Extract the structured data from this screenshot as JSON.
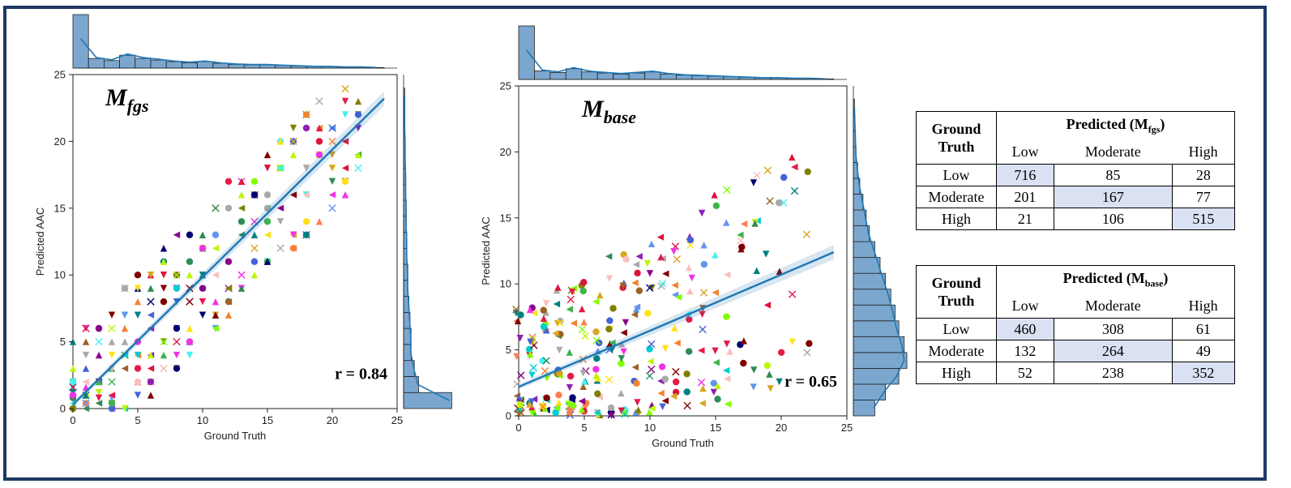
{
  "colors": {
    "frame": "#1f3864",
    "fit_line": "#1f77b4",
    "hist_fill": "#7ba7cf",
    "diag_cell": "#d9e1f2"
  },
  "chart_data": [
    {
      "type": "scatter",
      "title": "M_fgs",
      "title_main": "M",
      "title_sub": "fgs",
      "xlabel": "Ground Truth",
      "ylabel": "Predicted AAC",
      "xlim": [
        0,
        25
      ],
      "ylim": [
        0,
        25
      ],
      "xticks": [
        0,
        5,
        10,
        15,
        20,
        25
      ],
      "yticks": [
        0,
        5,
        10,
        15,
        20,
        25
      ],
      "annotation": "r = 0.84",
      "fit_line": {
        "x": [
          0,
          24
        ],
        "y": [
          0.3,
          23.2
        ]
      },
      "points_range_y_over_x": {
        "slope": 0.95,
        "spread": 3.5
      },
      "marginal_x": [
        1.0,
        0.18,
        0.14,
        0.24,
        0.18,
        0.15,
        0.12,
        0.1,
        0.12,
        0.09,
        0.07,
        0.06,
        0.06,
        0.05,
        0.04,
        0.03,
        0.03,
        0.02,
        0.02,
        0.01
      ],
      "marginal_y": [
        0.9,
        0.28,
        0.2,
        0.14,
        0.14,
        0.12,
        0.1,
        0.08,
        0.08,
        0.06,
        0.06,
        0.05,
        0.05,
        0.04,
        0.04,
        0.03,
        0.03,
        0.02,
        0.02,
        0.02
      ]
    },
    {
      "type": "scatter",
      "title": "M_base",
      "title_main": "M",
      "title_sub": "base",
      "xlabel": "Ground Truth",
      "ylabel": "Predicted AAC",
      "xlim": [
        0,
        25
      ],
      "ylim": [
        0,
        25
      ],
      "xticks": [
        0,
        5,
        10,
        15,
        20,
        25
      ],
      "yticks": [
        0,
        5,
        10,
        15,
        20,
        25
      ],
      "annotation": "r = 0.65",
      "fit_line": {
        "x": [
          0,
          24
        ],
        "y": [
          2.2,
          12.4
        ]
      },
      "marginal_x": [
        1.0,
        0.16,
        0.13,
        0.2,
        0.14,
        0.12,
        0.1,
        0.12,
        0.14,
        0.1,
        0.08,
        0.07,
        0.06,
        0.05,
        0.04,
        0.03,
        0.03,
        0.02,
        0.02,
        0.01
      ],
      "marginal_y": [
        0.4,
        0.6,
        0.85,
        1.0,
        0.95,
        0.85,
        0.78,
        0.7,
        0.6,
        0.5,
        0.4,
        0.3,
        0.24,
        0.18,
        0.12,
        0.08,
        0.05,
        0.04,
        0.03,
        0.02
      ]
    }
  ],
  "tables": [
    {
      "row_header": "Ground Truth",
      "col_header_main": "Predicted (M",
      "col_header_sub": "fgs",
      "col_header_end": ")",
      "columns": [
        "Low",
        "Moderate",
        "High"
      ],
      "rows": [
        {
          "label": "Low",
          "values": [
            "716",
            "85",
            "28"
          ]
        },
        {
          "label": "Moderate",
          "values": [
            "201",
            "167",
            "77"
          ]
        },
        {
          "label": "High",
          "values": [
            "21",
            "106",
            "515"
          ]
        }
      ]
    },
    {
      "row_header": "Ground Truth",
      "col_header_main": "Predicted (M",
      "col_header_sub": "base",
      "col_header_end": ")",
      "columns": [
        "Low",
        "Moderate",
        "High"
      ],
      "rows": [
        {
          "label": "Low",
          "values": [
            "460",
            "308",
            "61"
          ]
        },
        {
          "label": "Moderate",
          "values": [
            "132",
            "264",
            "49"
          ]
        },
        {
          "label": "High",
          "values": [
            "52",
            "238",
            "352"
          ]
        }
      ]
    }
  ]
}
